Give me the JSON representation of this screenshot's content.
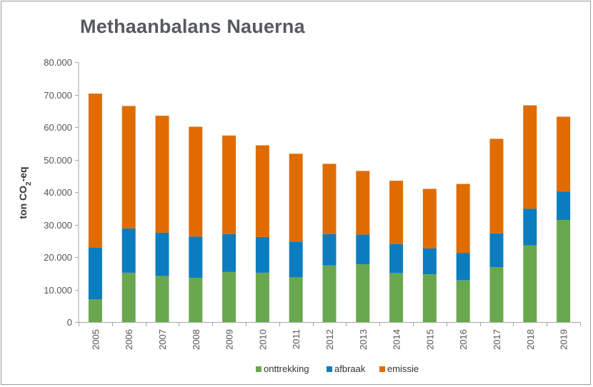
{
  "chart_data": {
    "type": "bar",
    "stacked": true,
    "title": "Methaanbalans Nauerna",
    "ylabel": "ton CO2-eq",
    "ylabel_parts": {
      "main": "ton CO",
      "sub": "2",
      "suffix": "-eq"
    },
    "xlabel": "",
    "ylim": [
      0,
      80000
    ],
    "yticks": [
      0,
      10000,
      20000,
      30000,
      40000,
      50000,
      60000,
      70000,
      80000
    ],
    "ytick_labels": [
      "0",
      "10.000",
      "20.000",
      "30.000",
      "40.000",
      "50.000",
      "60.000",
      "70.000",
      "80.000"
    ],
    "grid": false,
    "legend_position": "bottom",
    "categories": [
      "2005",
      "2006",
      "2007",
      "2008",
      "2009",
      "2010",
      "2011",
      "2012",
      "2013",
      "2014",
      "2015",
      "2016",
      "2017",
      "2018",
      "2019"
    ],
    "series": [
      {
        "name": "onttrekking",
        "color": "#6aa84f",
        "values": [
          7000,
          15200,
          14200,
          13600,
          15400,
          15200,
          13800,
          17400,
          17800,
          15000,
          14700,
          12800,
          16900,
          23600,
          31400
        ]
      },
      {
        "name": "afbraak",
        "color": "#0b7dbf",
        "values": [
          16000,
          13600,
          13300,
          12700,
          11700,
          11000,
          11000,
          9700,
          9100,
          9000,
          8000,
          8400,
          10400,
          11300,
          8800
        ]
      },
      {
        "name": "emissie",
        "color": "#e06c00",
        "values": [
          47300,
          37700,
          36000,
          33800,
          30300,
          28200,
          27000,
          21600,
          19600,
          19500,
          18300,
          21300,
          29100,
          31800,
          23000
        ]
      }
    ]
  }
}
